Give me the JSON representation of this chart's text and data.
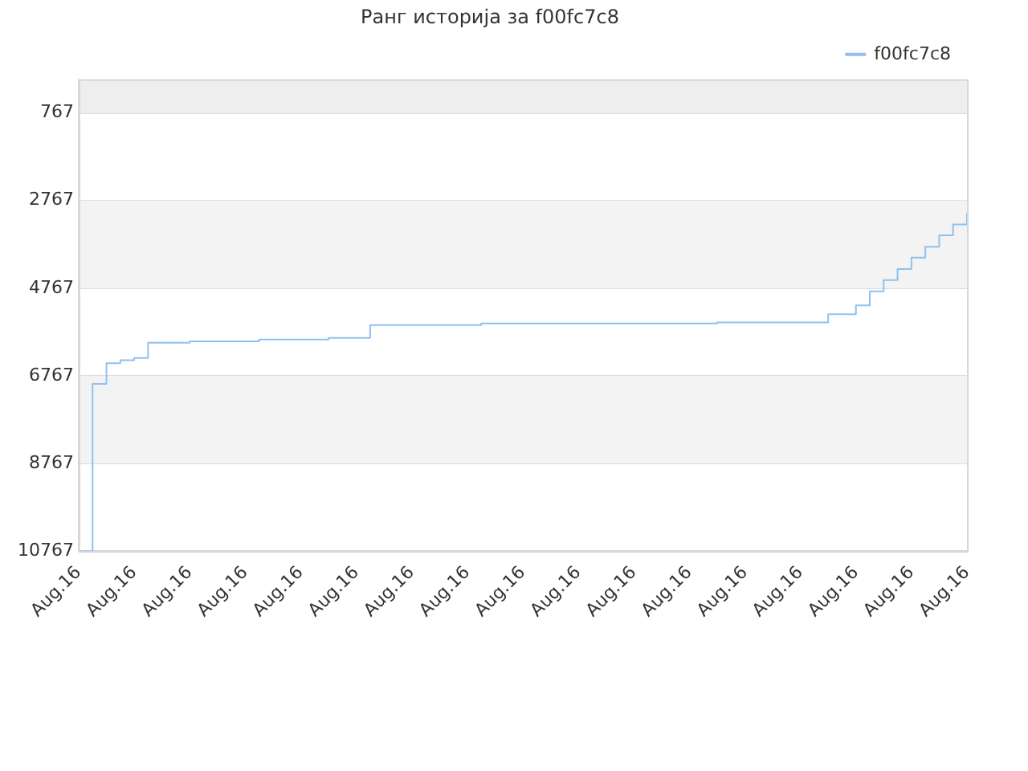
{
  "chart_data": {
    "type": "step",
    "title": "Ранг историја за f00fc7c8",
    "categories": [
      "Aug.16",
      null,
      null,
      null,
      "Aug.16",
      null,
      null,
      null,
      "Aug.16",
      null,
      null,
      null,
      "Aug.16",
      null,
      null,
      null,
      "Aug.16",
      null,
      null,
      null,
      "Aug.16",
      null,
      null,
      null,
      "Aug.16",
      null,
      null,
      null,
      "Aug.16",
      null,
      null,
      null,
      "Aug.16",
      null,
      null,
      null,
      "Aug.16",
      null,
      null,
      null,
      "Aug.16",
      null,
      null,
      null,
      "Aug.16",
      null,
      null,
      null,
      "Aug.16",
      null,
      null,
      null,
      "Aug.16",
      null,
      null,
      null,
      "Aug.16",
      null,
      null,
      null,
      "Aug.16",
      null,
      null,
      null,
      "Aug.16"
    ],
    "series": [
      {
        "name": "f00fc7c8",
        "color": "#90c0f0",
        "values": [
          10767,
          6950,
          6480,
          6410,
          6360,
          6010,
          6010,
          6010,
          5980,
          5980,
          5980,
          5980,
          5980,
          5940,
          5940,
          5940,
          5940,
          5940,
          5900,
          5900,
          5900,
          5610,
          5610,
          5610,
          5610,
          5610,
          5610,
          5610,
          5610,
          5570,
          5570,
          5570,
          5570,
          5570,
          5570,
          5570,
          5570,
          5570,
          5570,
          5570,
          5570,
          5570,
          5570,
          5570,
          5570,
          5570,
          5550,
          5550,
          5550,
          5550,
          5550,
          5550,
          5550,
          5550,
          5360,
          5360,
          5160,
          4840,
          4580,
          4330,
          4070,
          3820,
          3560,
          3310,
          3050
        ]
      }
    ],
    "ylim": [
      10767,
      0
    ],
    "yticks": [
      767,
      2767,
      4767,
      6767,
      8767,
      10767
    ],
    "bands": [
      {
        "axis": "y",
        "from": 0,
        "to": 767,
        "color": "#eeeeee"
      },
      {
        "axis": "y",
        "from": 2767,
        "to": 4767,
        "color": "#f3f3f3"
      },
      {
        "axis": "y",
        "from": 6767,
        "to": 8767,
        "color": "#f3f3f3"
      }
    ],
    "grid": "y",
    "legend": "top right",
    "marker": "none"
  }
}
